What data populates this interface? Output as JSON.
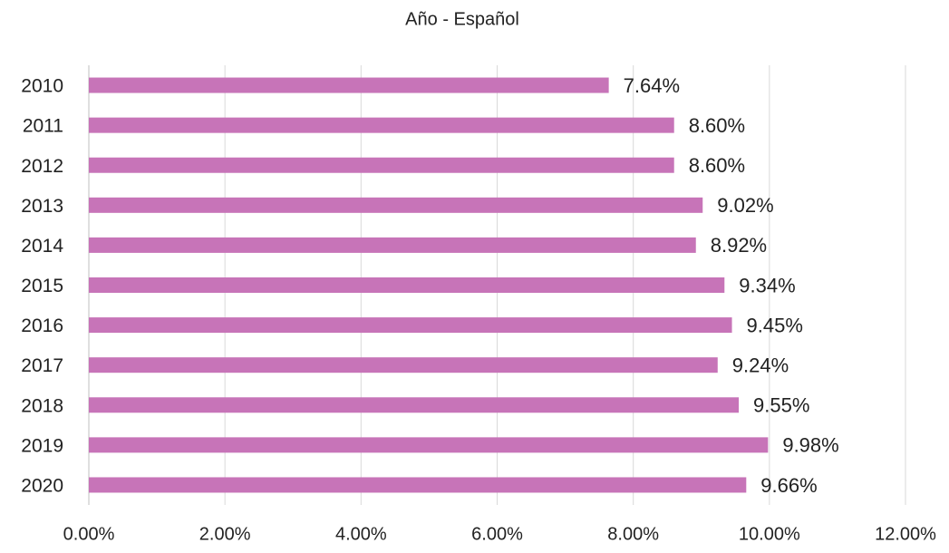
{
  "chart_data": {
    "type": "bar",
    "orientation": "horizontal",
    "title": "Año - Español",
    "categories": [
      "2010",
      "2011",
      "2012",
      "2013",
      "2014",
      "2015",
      "2016",
      "2017",
      "2018",
      "2019",
      "2020"
    ],
    "values": [
      7.64,
      8.6,
      8.6,
      9.02,
      8.92,
      9.34,
      9.45,
      9.24,
      9.55,
      9.98,
      9.66
    ],
    "value_labels": [
      "7.64%",
      "8.60%",
      "8.60%",
      "9.02%",
      "8.92%",
      "9.34%",
      "9.45%",
      "9.24%",
      "9.55%",
      "9.98%",
      "9.66%"
    ],
    "color": "#c774b8",
    "xlim": [
      0,
      12
    ],
    "xticks": [
      {
        "value": 0,
        "label": "0.00%"
      },
      {
        "value": 2,
        "label": "2.00%"
      },
      {
        "value": 4,
        "label": "4.00%"
      },
      {
        "value": 6,
        "label": "6.00%"
      },
      {
        "value": 8,
        "label": "8.00%"
      },
      {
        "value": 10,
        "label": "10.00%"
      },
      {
        "value": 12,
        "label": "12.00%"
      }
    ],
    "grid": true
  }
}
